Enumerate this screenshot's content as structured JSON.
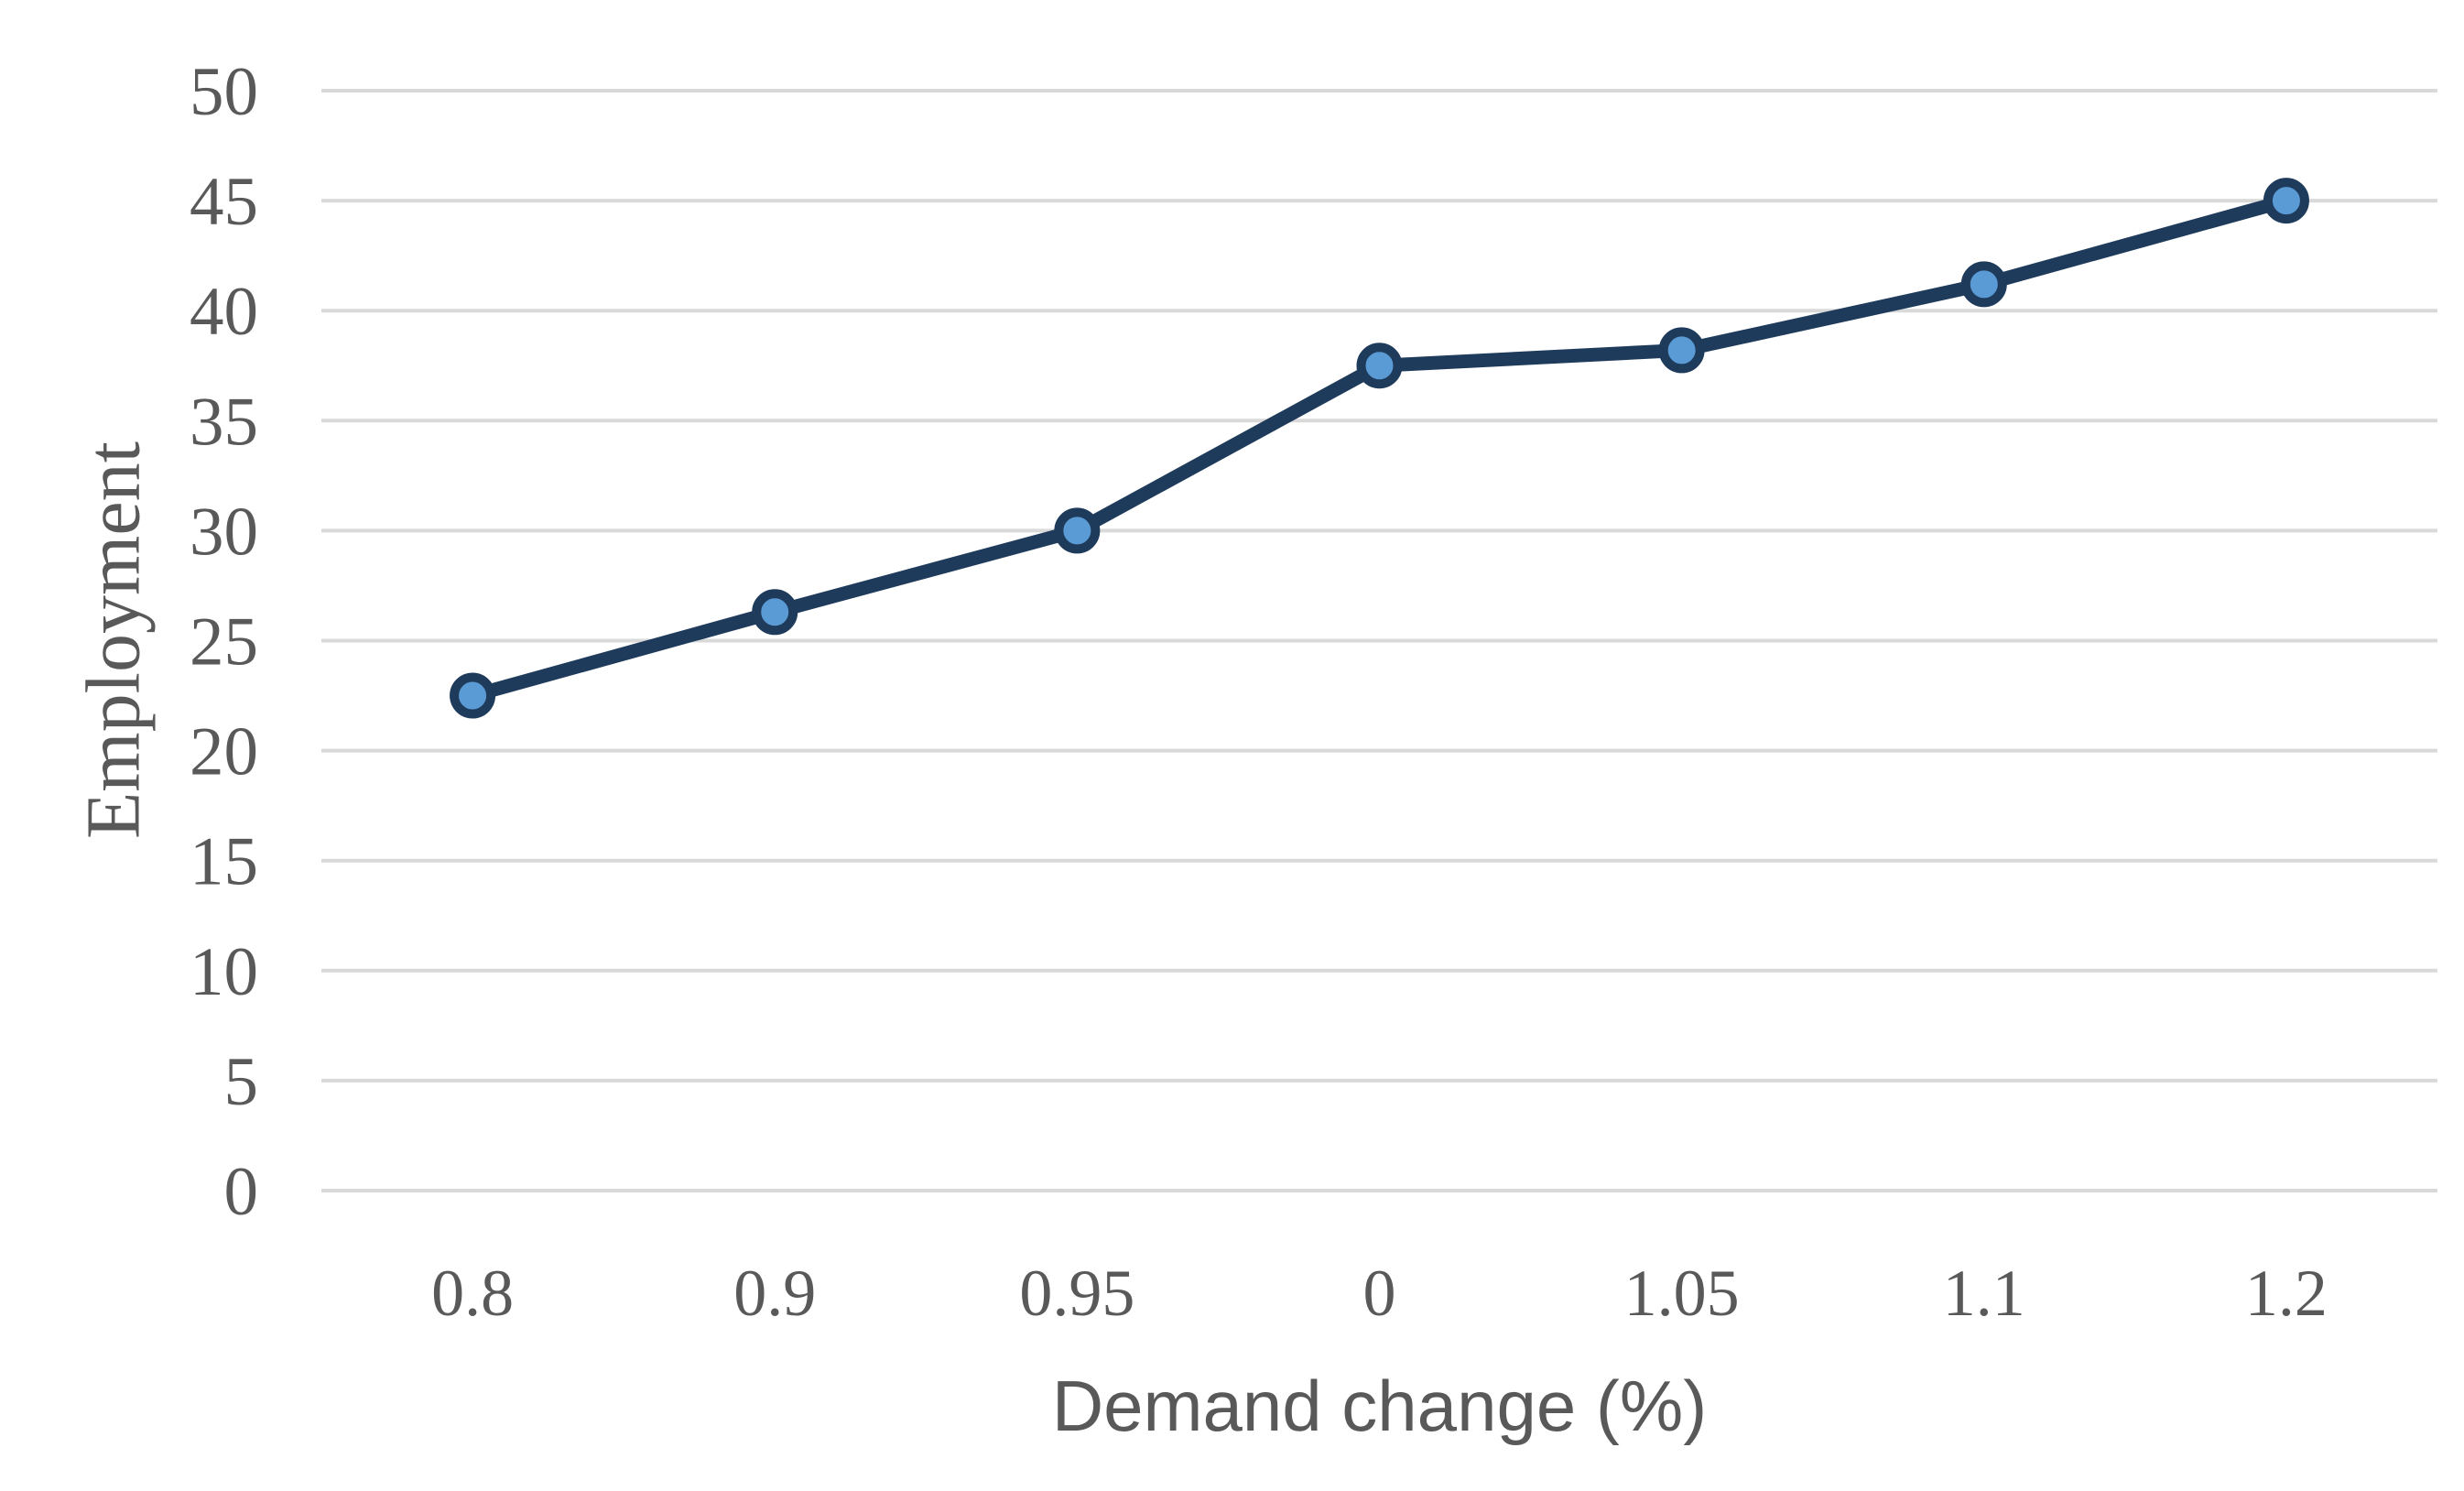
{
  "chart_data": {
    "type": "line",
    "title": "",
    "xlabel": "Demand change (%)",
    "ylabel": "Employment",
    "categories": [
      "0.8",
      "0.9",
      "0.95",
      "0",
      "1.05",
      "1.1",
      "1.2"
    ],
    "values": [
      22.5,
      26.3,
      30,
      37.5,
      38.2,
      41.2,
      45
    ],
    "yticks": [
      0,
      5,
      10,
      15,
      20,
      25,
      30,
      35,
      40,
      45,
      50
    ],
    "ylim": [
      0,
      50
    ],
    "grid": "horizontal",
    "legend": "none",
    "marker": "circle",
    "colors": {
      "line": "#1f3b5c",
      "marker_fill": "#5b9bd5",
      "marker_border": "#1f3b5c",
      "gridline": "#d9d9d9",
      "tick_text": "#595959",
      "axis_title_text": "#595959",
      "background": "#ffffff"
    }
  }
}
